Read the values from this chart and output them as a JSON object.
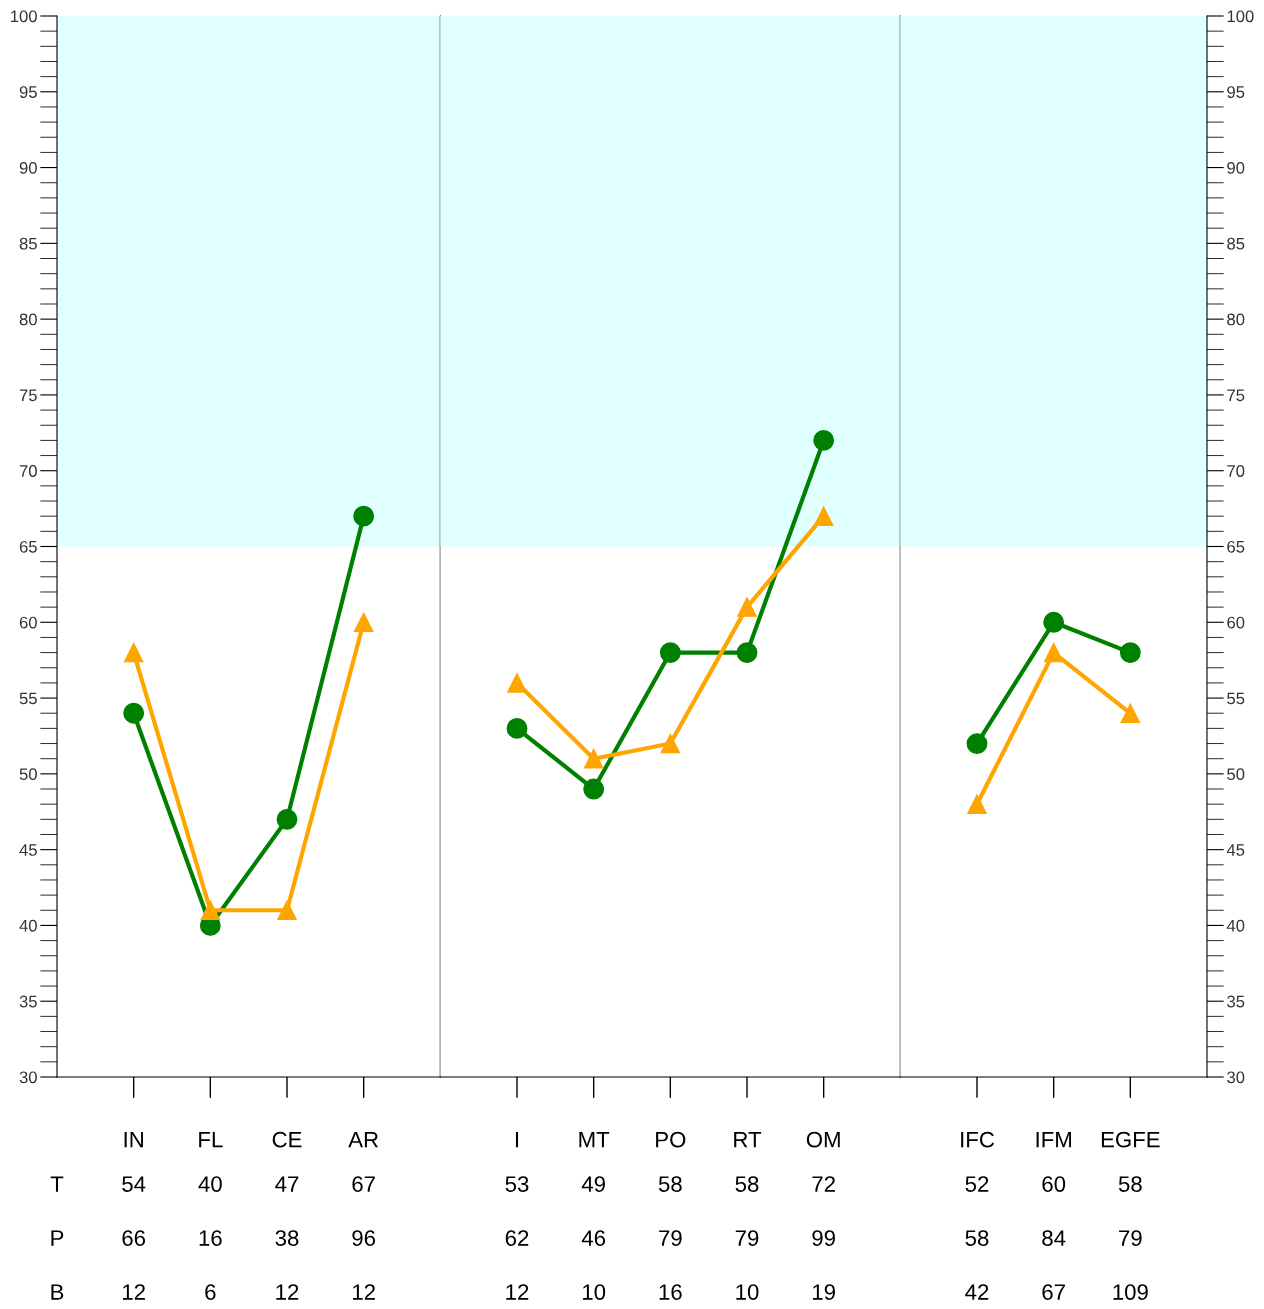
{
  "chart_data": [
    {
      "type": "line",
      "categories": [
        "IN",
        "FL",
        "CE",
        "AR"
      ],
      "ylim": [
        30,
        100
      ],
      "yticks": [
        30,
        35,
        40,
        45,
        50,
        55,
        60,
        65,
        70,
        75,
        80,
        85,
        90,
        95,
        100
      ],
      "bands": [
        {
          "axis": "y",
          "from": 65,
          "to": 100,
          "color": "#e0ffff"
        }
      ],
      "series": [
        {
          "name": "T",
          "color": "#008000",
          "marker": "circle",
          "values": [
            54,
            40,
            47,
            67
          ],
          "value_labels": [
            "54",
            "40",
            "47",
            "67"
          ]
        },
        {
          "color": "#ffa500",
          "marker": "triangle",
          "values": [
            58,
            41,
            41,
            60
          ]
        }
      ],
      "annotations": [
        "P",
        "66",
        "16",
        "38",
        "96",
        "B",
        "12",
        "6",
        "12",
        "12"
      ]
    },
    {
      "type": "line",
      "categories": [
        "I",
        "MT",
        "PO",
        "RT",
        "OM"
      ],
      "ylim": [
        30,
        100
      ],
      "yticks": [
        30,
        35,
        40,
        45,
        50,
        55,
        60,
        65,
        70,
        75,
        80,
        85,
        90,
        95,
        100
      ],
      "tick_labels": "x",
      "bands": [
        {
          "axis": "y",
          "from": 65,
          "to": 100,
          "color": "#e0ffff"
        }
      ],
      "series": [
        {
          "color": "#008000",
          "marker": "circle",
          "values": [
            53,
            49,
            58,
            58,
            72
          ],
          "value_labels": [
            "53",
            "49",
            "58",
            "58",
            "72"
          ]
        },
        {
          "color": "#ffa500",
          "marker": "triangle",
          "values": [
            56,
            51,
            52,
            61,
            67
          ]
        }
      ],
      "annotations": [
        "62",
        "46",
        "79",
        "79",
        "99",
        "12",
        "10",
        "16",
        "10",
        "19"
      ]
    },
    {
      "type": "line",
      "categories": [
        "IFC",
        "IFM",
        "EGFE"
      ],
      "ylim": [
        30,
        100
      ],
      "yticks": [
        30,
        35,
        40,
        45,
        50,
        55,
        60,
        65,
        70,
        75,
        80,
        85,
        90,
        95,
        100
      ],
      "bands": [
        {
          "axis": "y",
          "from": 65,
          "to": 100,
          "color": "#e0ffff"
        }
      ],
      "series": [
        {
          "color": "#008000",
          "marker": "circle",
          "values": [
            52,
            60,
            58
          ],
          "value_labels": [
            "52",
            "60",
            "58"
          ]
        },
        {
          "color": "#ffa500",
          "marker": "triangle",
          "values": [
            48,
            58,
            54
          ]
        }
      ],
      "annotations": [
        "58",
        "84",
        "79",
        "42",
        "67",
        "109"
      ]
    }
  ]
}
